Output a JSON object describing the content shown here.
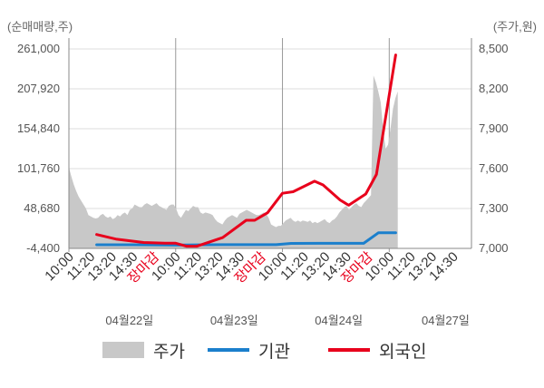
{
  "chart_data": {
    "type": "line",
    "ylabel_left": "(순매매량,주)",
    "ylabel_right": "(주가,원)",
    "yticks_left": [
      "261,000",
      "207,920",
      "154,840",
      "101,760",
      "48,680",
      "-4,400"
    ],
    "yticks_left_values": [
      261000,
      207920,
      154840,
      101760,
      48680,
      -4400
    ],
    "yticks_right": [
      "8,500",
      "8,200",
      "7,900",
      "7,600",
      "7,300",
      "7,000"
    ],
    "yticks_right_values": [
      8500,
      8200,
      7900,
      7600,
      7300,
      7000
    ],
    "ylim_left": [
      -4400,
      261000
    ],
    "ylim_right": [
      7000,
      8500
    ],
    "xticks": [
      "10:00",
      "11:20",
      "13:20",
      "14:30",
      "장마감",
      "10:00",
      "11:20",
      "13:20",
      "14:30",
      "장마감",
      "10:00",
      "11:20",
      "13:20",
      "14:30",
      "장마감",
      "10:00",
      "11:20",
      "13:20",
      "14:30"
    ],
    "xtick_highlight": [
      4,
      9,
      14
    ],
    "dates": [
      "04월22일",
      "04월23일",
      "04월24일",
      "04월27일"
    ],
    "x_slots": 19,
    "legend": [
      "주가",
      "기관",
      "외국인"
    ],
    "colors": {
      "price": "#c8c8c8",
      "inst": "#1b7fcc",
      "foreign": "#e8001c",
      "grid": "#dddddd"
    },
    "price": {
      "name": "주가",
      "values": [
        7610,
        7540,
        7480,
        7430,
        7390,
        7360,
        7330,
        7300,
        7250,
        7240,
        7230,
        7225,
        7230,
        7250,
        7260,
        7240,
        7230,
        7240,
        7220,
        7230,
        7250,
        7240,
        7260,
        7270,
        7250,
        7290,
        7300,
        7330,
        7320,
        7310,
        7310,
        7330,
        7340,
        7330,
        7320,
        7330,
        7340,
        7320,
        7310,
        7300,
        7290,
        7320,
        7330,
        7330,
        7300,
        7250,
        7230,
        7260,
        7290,
        7280,
        7300,
        7320,
        7310,
        7310,
        7270,
        7260,
        7270,
        7265,
        7260,
        7250,
        7220,
        7200,
        7190,
        7180,
        7210,
        7230,
        7240,
        7250,
        7240,
        7230,
        7260,
        7270,
        7280,
        7290,
        7280,
        7270,
        7260,
        7250,
        7250,
        7260,
        7270,
        7260,
        7230,
        7180,
        7170,
        7160,
        7170,
        7170,
        7190,
        7210,
        7220,
        7230,
        7210,
        7200,
        7210,
        7200,
        7210,
        7205,
        7200,
        7210,
        7190,
        7200,
        7190,
        7200,
        7210,
        7220,
        7200,
        7190,
        7210,
        7220,
        7240,
        7270,
        7290,
        7310,
        7320,
        7290,
        7310,
        7330,
        7340,
        7320,
        7310,
        7340,
        7360,
        7380,
        7400,
        8300,
        8250,
        8180,
        8100,
        7900,
        7750,
        7780,
        7900,
        8050,
        8130,
        8180
      ]
    },
    "inst": {
      "name": "기관",
      "x": [
        1.3,
        3,
        5,
        5.9,
        7.2,
        8.5,
        9.7,
        10.4,
        11.7,
        13.1,
        13.8,
        14.5,
        15.3
      ],
      "values": [
        400,
        400,
        0,
        300,
        500,
        500,
        600,
        2200,
        2300,
        2400,
        2400,
        16500,
        16500
      ]
    },
    "foreign": {
      "name": "외국인",
      "x": [
        1.3,
        2.2,
        3.5,
        4.5,
        5.0,
        5.5,
        6.0,
        7.2,
        8.3,
        8.7,
        9.3,
        10.0,
        10.5,
        11.5,
        11.9,
        12.7,
        13.1,
        13.9,
        14.4,
        15.3
      ],
      "values": [
        14000,
        8000,
        3500,
        2500,
        2500,
        -1500,
        -1500,
        10000,
        33000,
        33000,
        43000,
        69000,
        71000,
        85000,
        80000,
        60000,
        53000,
        68000,
        94000,
        253000
      ]
    }
  }
}
